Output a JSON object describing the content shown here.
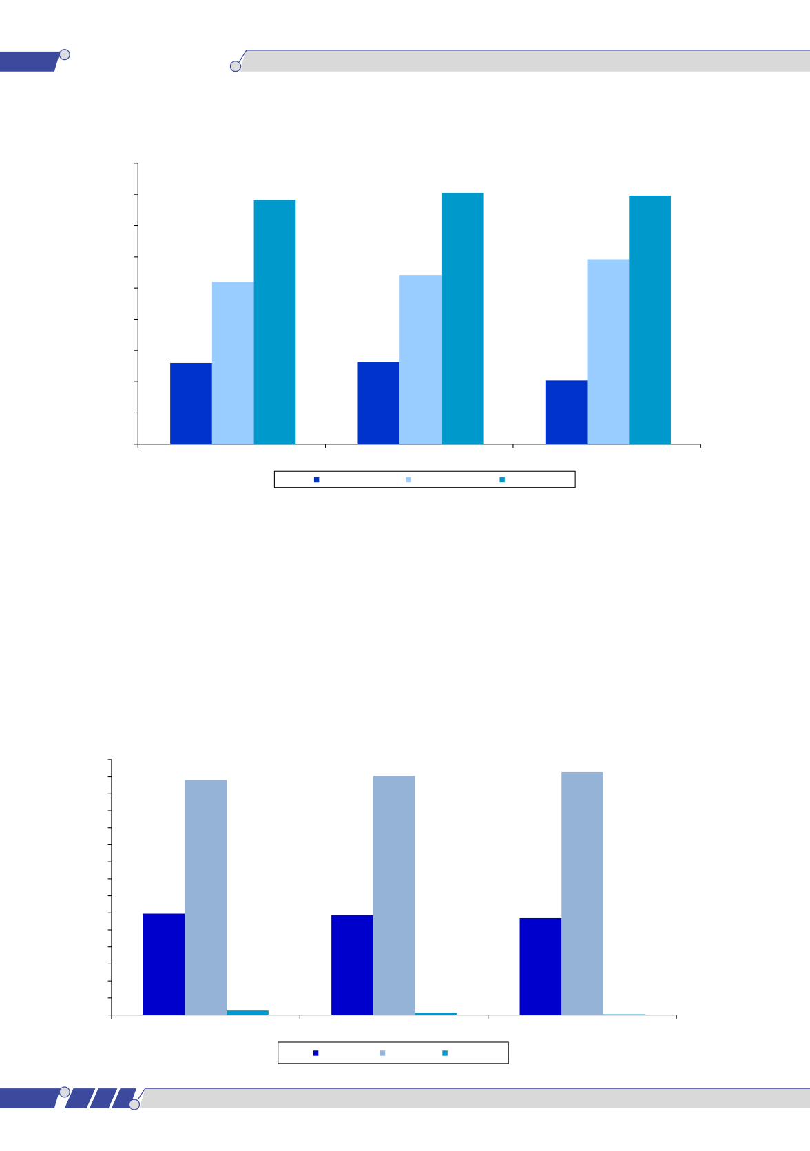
{
  "chart_data": [
    {
      "type": "bar",
      "categories": [
        null,
        null,
        null
      ],
      "ylim": [
        0,
        9
      ],
      "yticks": [
        0,
        1,
        2,
        3,
        4,
        5,
        6,
        7,
        8,
        9
      ],
      "series": [
        {
          "color": "#0033cc",
          "values": [
            2.6,
            2.63,
            2.04
          ]
        },
        {
          "color": "#99ccff",
          "values": [
            5.19,
            5.42,
            5.92
          ]
        },
        {
          "color": "#0099cc",
          "values": [
            7.82,
            8.05,
            7.96
          ]
        }
      ]
    },
    {
      "type": "bar",
      "categories": [
        null,
        null,
        null
      ],
      "ylim": [
        0,
        15
      ],
      "yticks": [
        0,
        1,
        2,
        3,
        4,
        5,
        6,
        7,
        8,
        9,
        10,
        11,
        12,
        13,
        14,
        15
      ],
      "series": [
        {
          "color": "#0000cc",
          "values": [
            5.95,
            5.86,
            5.69
          ]
        },
        {
          "color": "#95b3d7",
          "values": [
            13.8,
            14.05,
            14.27
          ]
        },
        {
          "color": "#0099cc",
          "values": [
            0.26,
            0.13,
            0.04
          ]
        }
      ]
    }
  ]
}
